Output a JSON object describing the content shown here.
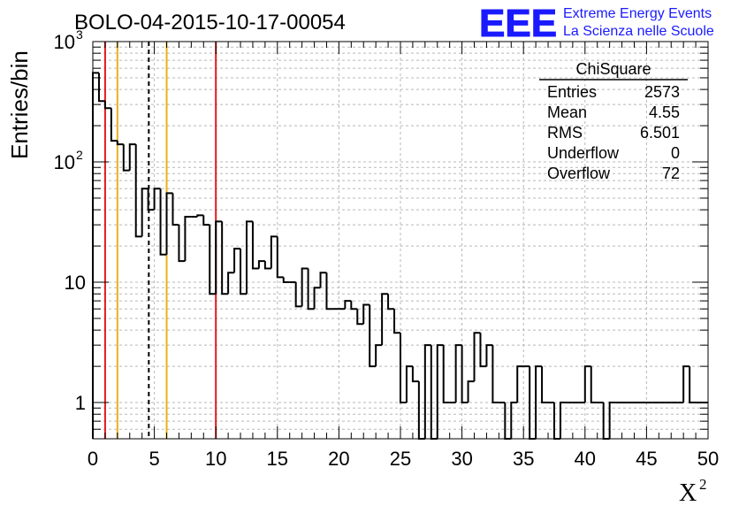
{
  "title": "BOLO-04-2015-10-17-00054",
  "logo": {
    "text": "EEE",
    "line1": "Extreme Energy Events",
    "line2": "La Scienza nelle Scuole",
    "color": "#1a1aff"
  },
  "stats": {
    "name": "ChiSquare",
    "rows": [
      {
        "label": "Entries",
        "value": "2573"
      },
      {
        "label": "Mean",
        "value": "4.55"
      },
      {
        "label": "RMS",
        "value": "6.501"
      },
      {
        "label": "Underflow",
        "value": "0"
      },
      {
        "label": "Overflow",
        "value": "72"
      }
    ]
  },
  "chart_data": {
    "type": "histogram",
    "ylabel": "Entries/bin",
    "xlabel_base": "X",
    "xlabel_sup": "2",
    "xlim": [
      0,
      50
    ],
    "ylim": [
      0.5,
      1000
    ],
    "yscale": "log",
    "grid": true,
    "bin_width": 0.5,
    "x_ticks": [
      "0",
      "5",
      "10",
      "15",
      "20",
      "25",
      "30",
      "35",
      "40",
      "45",
      "50"
    ],
    "y_ticks": [
      {
        "value": 1,
        "label": "1"
      },
      {
        "value": 10,
        "label": "10"
      },
      {
        "value": 100,
        "label": "10",
        "sup": "2"
      },
      {
        "value": 1000,
        "label": "10",
        "sup": "3"
      }
    ],
    "values": [
      550,
      320,
      280,
      150,
      140,
      85,
      140,
      24,
      60,
      40,
      60,
      17,
      55,
      30,
      15,
      35,
      35,
      36,
      30,
      8,
      32,
      8,
      12,
      19,
      8,
      32,
      13,
      15,
      13,
      24,
      11,
      10,
      10,
      6.3,
      13,
      6,
      9,
      12,
      6,
      6,
      6,
      7,
      6,
      4.5,
      6.5,
      2,
      3,
      8,
      6,
      3.8,
      1,
      2,
      1.5,
      0.5,
      3,
      0.5,
      3,
      1,
      1,
      3,
      1,
      1.5,
      3.8,
      2,
      3,
      1,
      1,
      0.5,
      1,
      2,
      2,
      0.5,
      2,
      1,
      1,
      0.5,
      1,
      1,
      1,
      1,
      2,
      1,
      1,
      0.5,
      1,
      1,
      1,
      1,
      1,
      1,
      1,
      1,
      1,
      1,
      1,
      1,
      2,
      1,
      1,
      1
    ],
    "markers": [
      {
        "x": 1,
        "color": "#e41a1c",
        "style": "solid"
      },
      {
        "x": 2,
        "color": "#e8b21c",
        "style": "solid"
      },
      {
        "x": 4.55,
        "color": "#000000",
        "style": "dashed"
      },
      {
        "x": 6,
        "color": "#e8b21c",
        "style": "solid"
      },
      {
        "x": 10,
        "color": "#e41a1c",
        "style": "solid"
      }
    ],
    "line_color": "#000000",
    "grid_color": "#b8b8b8"
  }
}
